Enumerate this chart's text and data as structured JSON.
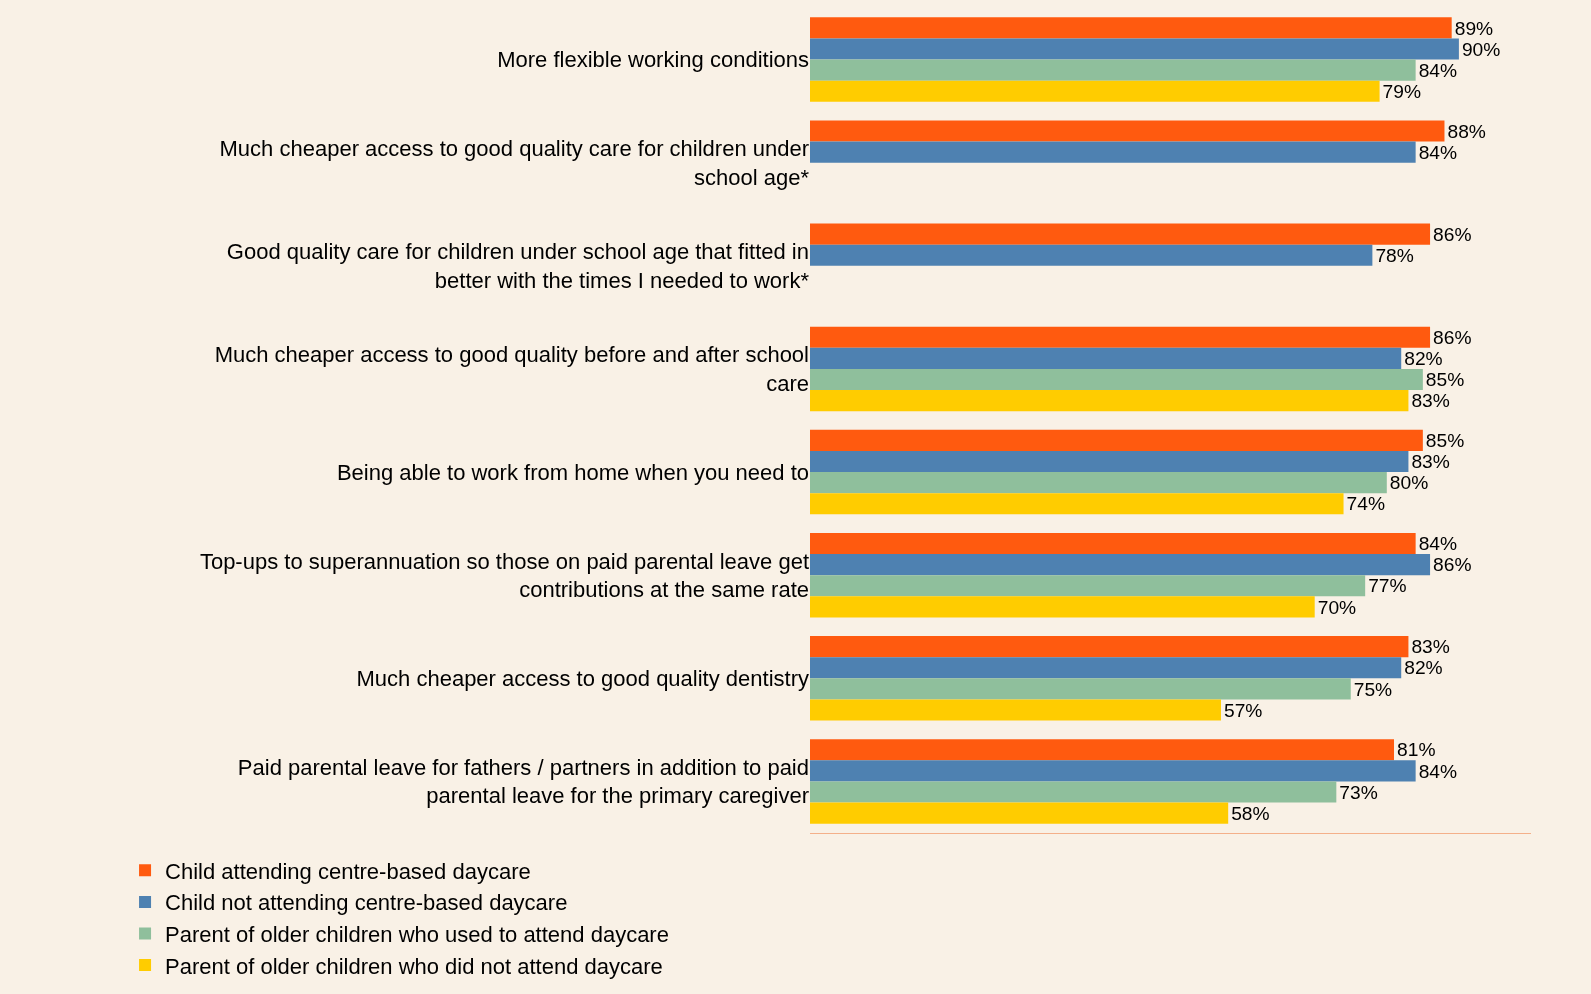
{
  "chart_data": {
    "type": "bar",
    "orientation": "horizontal",
    "categories": [
      "More flexible working conditions",
      "Much cheaper access to good quality care for children under school age*",
      "Good quality care for children under school age that fitted in better with the times I needed to work*",
      "Much cheaper access to good quality before and after school care",
      "Being able to work from home when you need to",
      "Top-ups to superannuation so those on paid parental leave get contributions at the same rate",
      "Much cheaper access to good quality dentistry",
      "Paid parental leave for fathers / partners in addition to paid parental leave for the primary caregiver"
    ],
    "series": [
      {
        "name": "Child attending centre-based daycare",
        "color": "#ff5a0f",
        "values": [
          89,
          88,
          86,
          86,
          85,
          84,
          83,
          81
        ],
        "value_labels": [
          "89%",
          "88%",
          "86%",
          "86%",
          "85%",
          "84%",
          "83%",
          "81%"
        ]
      },
      {
        "name": "Child not attending centre-based daycare",
        "color": "#4e81b1",
        "values": [
          90,
          84,
          78,
          82,
          83,
          86,
          82,
          84
        ],
        "value_labels": [
          "90%",
          "84%",
          "78%",
          "82%",
          "83%",
          "86%",
          "82%",
          "84%"
        ]
      },
      {
        "name": "Parent of older children who used to attend daycare",
        "color": "#8fbf9c",
        "values": [
          84,
          null,
          null,
          85,
          80,
          77,
          75,
          73
        ],
        "value_labels": [
          "84%",
          null,
          null,
          "85%",
          "80%",
          "77%",
          "75%",
          "73%"
        ]
      },
      {
        "name": "Parent of older children who did not attend daycare",
        "color": "#ffcc00",
        "values": [
          79,
          null,
          null,
          83,
          74,
          70,
          57,
          58
        ],
        "value_labels": [
          "79%",
          null,
          null,
          "83%",
          "74%",
          "70%",
          "57%",
          "58%"
        ]
      }
    ],
    "xlim": [
      0,
      100
    ],
    "tick_labels": "y",
    "grid": false,
    "legend": "bottom"
  }
}
